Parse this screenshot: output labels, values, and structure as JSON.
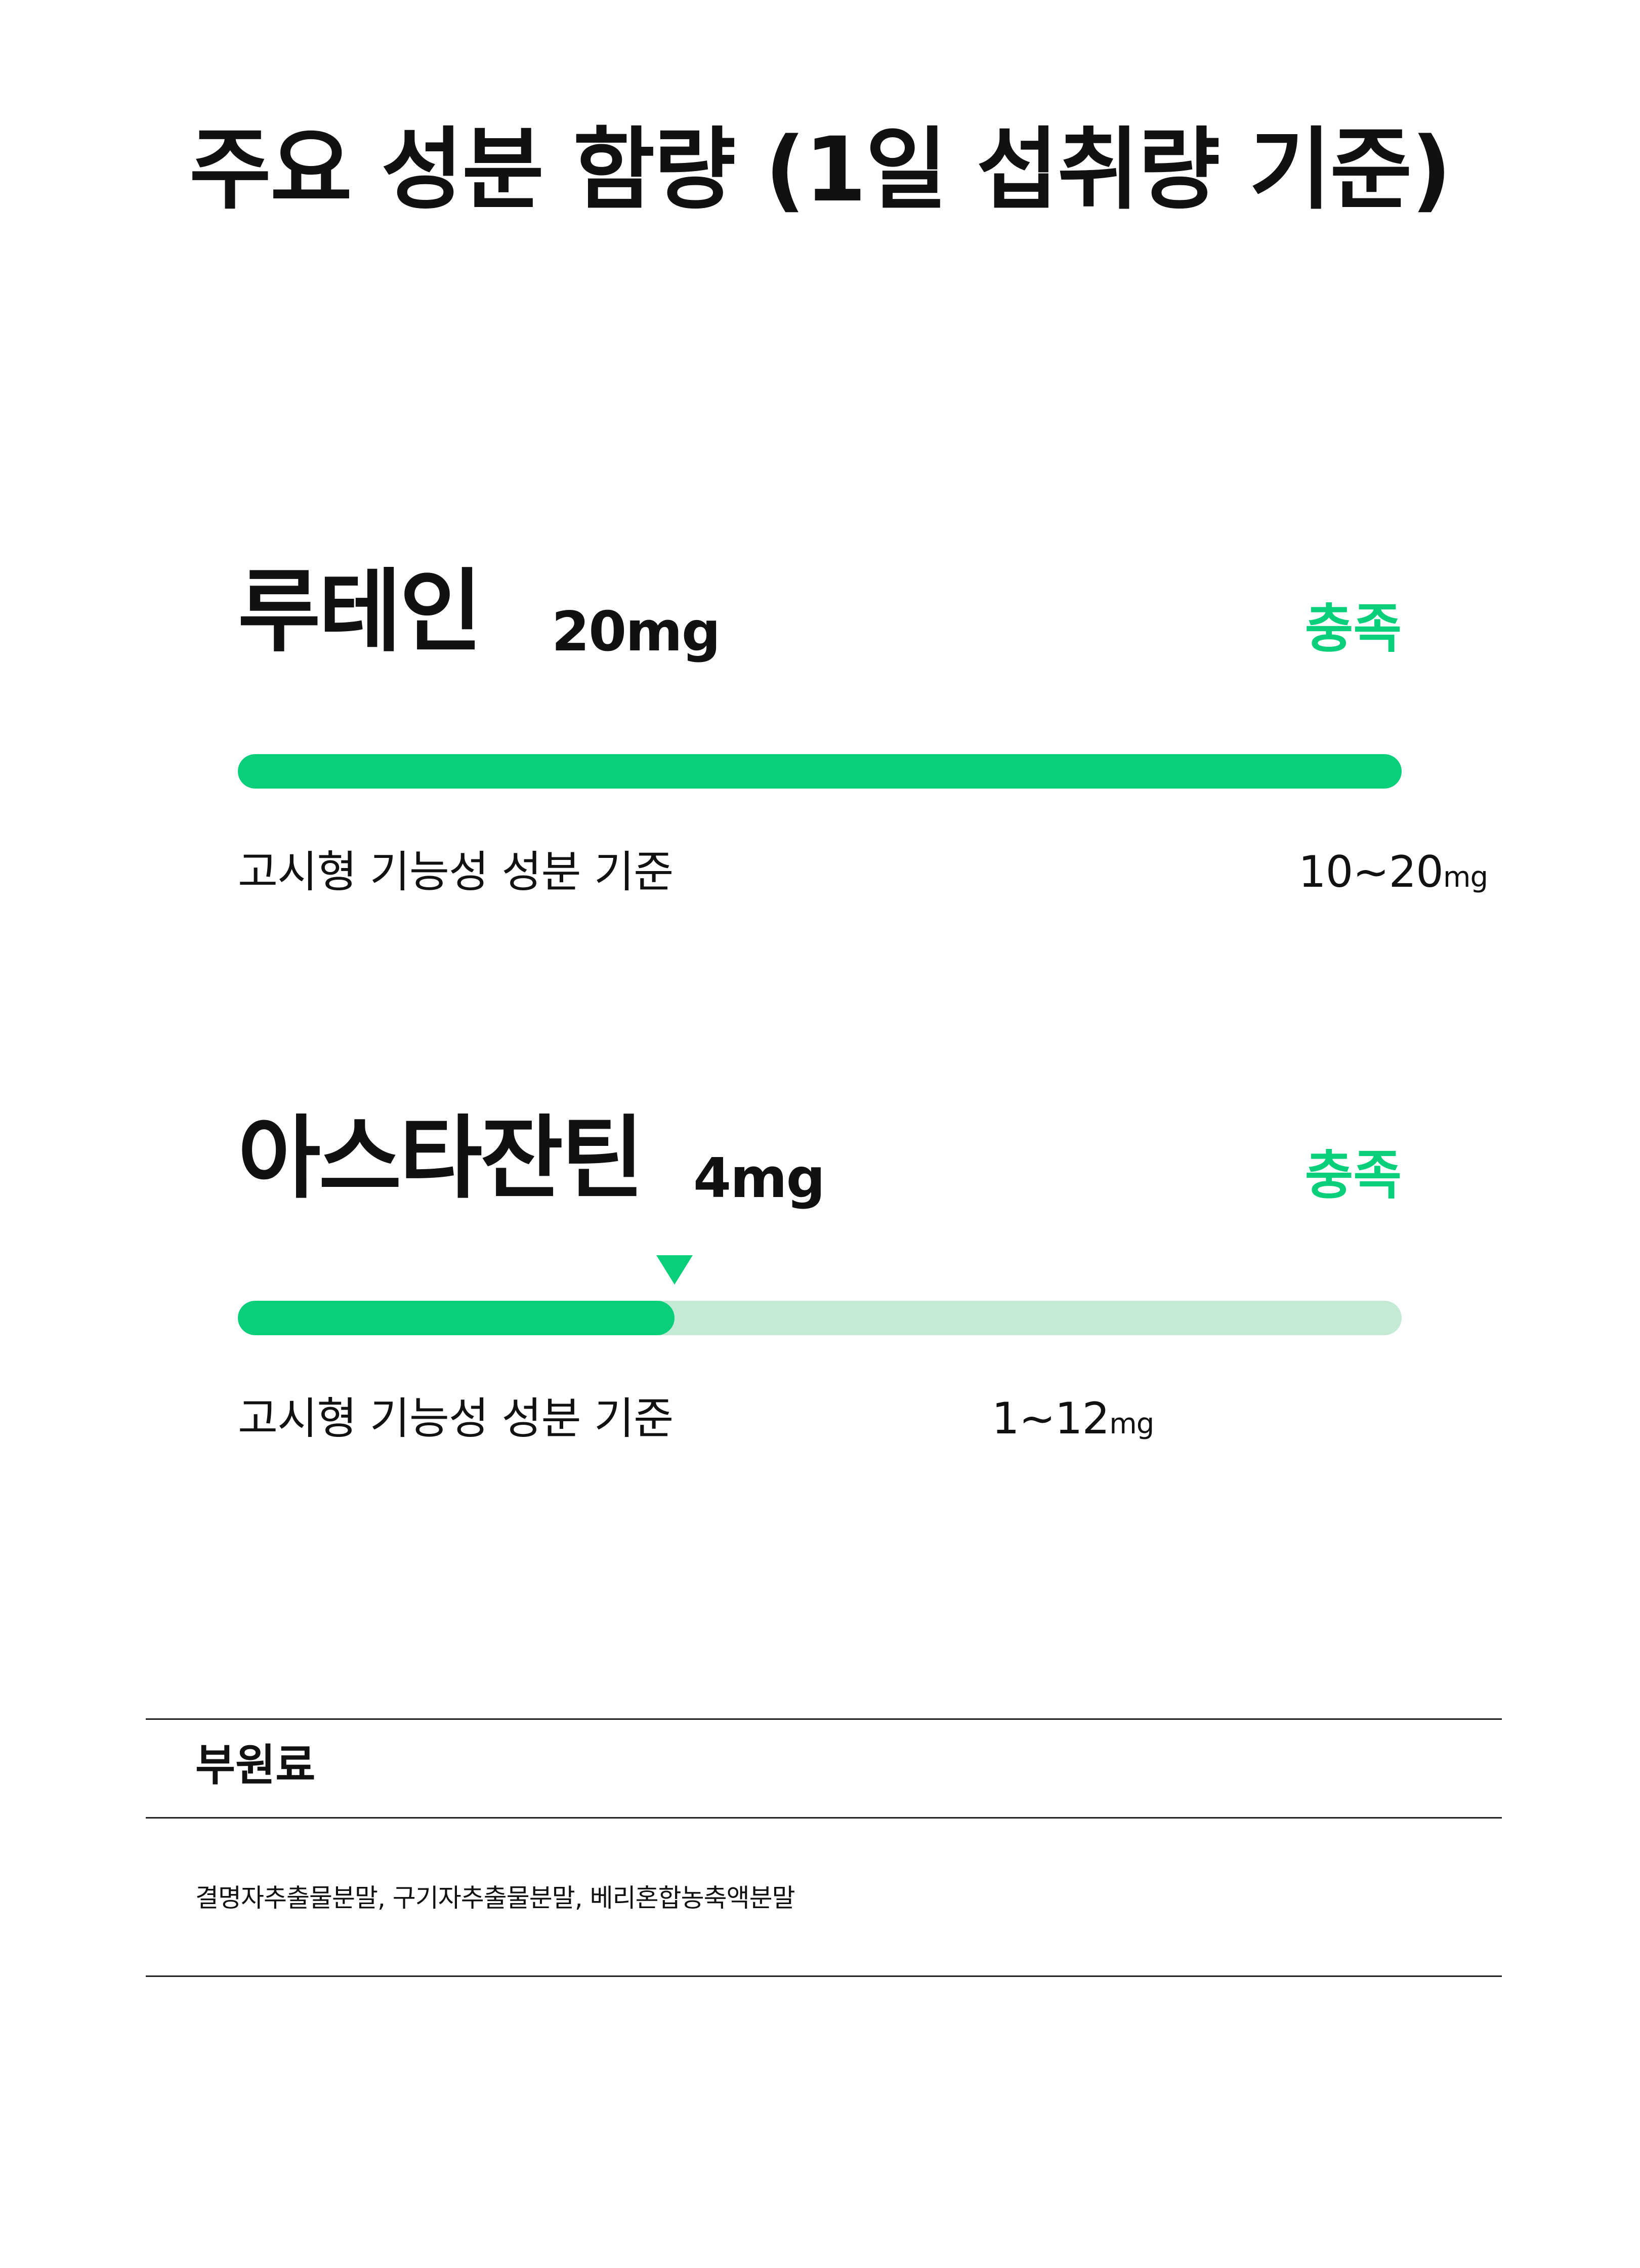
{
  "page": {
    "title": "주요 성분 함량 (1일 섭취량 기준)"
  },
  "ingredients": [
    {
      "name": "루테인",
      "amount": "20mg",
      "status": "충족",
      "standard_label": "고시형 기능성 성분 기준",
      "standard_range": "10~20",
      "standard_unit": "mg",
      "bar_fill_fraction": 1.0,
      "marker_shown": false
    },
    {
      "name": "아스타잔틴",
      "amount": "4mg",
      "status": "충족",
      "standard_label": "고시형 기능성 성분 기준",
      "standard_range": "1~12",
      "standard_unit": "mg",
      "bar_fill_fraction": 0.375,
      "marker_shown": true
    }
  ],
  "sub_ingredients": {
    "title": "부원료",
    "content": "결명자추출물분말, 구기자추출물분말, 베리혼합농축액분말"
  },
  "colors": {
    "accent": "#0acf7a",
    "track": "#c4ead6",
    "text": "#111111"
  }
}
